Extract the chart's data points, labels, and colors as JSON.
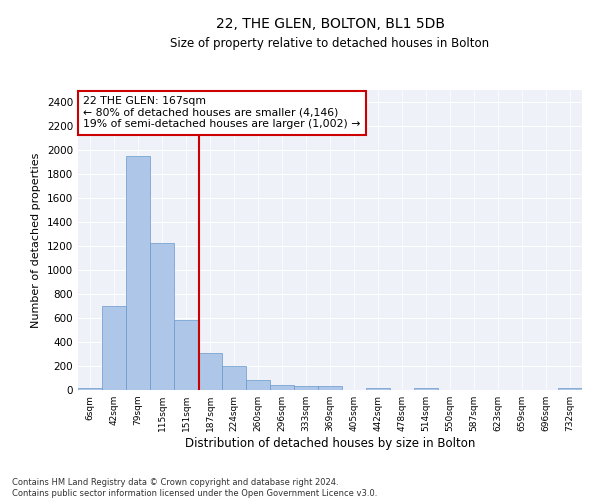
{
  "title": "22, THE GLEN, BOLTON, BL1 5DB",
  "subtitle": "Size of property relative to detached houses in Bolton",
  "xlabel": "Distribution of detached houses by size in Bolton",
  "ylabel": "Number of detached properties",
  "footer_line1": "Contains HM Land Registry data © Crown copyright and database right 2024.",
  "footer_line2": "Contains public sector information licensed under the Open Government Licence v3.0.",
  "annotation_line1": "22 THE GLEN: 167sqm",
  "annotation_line2": "← 80% of detached houses are smaller (4,146)",
  "annotation_line3": "19% of semi-detached houses are larger (1,002) →",
  "tick_labels": [
    "6sqm",
    "42sqm",
    "79sqm",
    "115sqm",
    "151sqm",
    "187sqm",
    "224sqm",
    "260sqm",
    "296sqm",
    "333sqm",
    "369sqm",
    "405sqm",
    "442sqm",
    "478sqm",
    "514sqm",
    "550sqm",
    "587sqm",
    "623sqm",
    "659sqm",
    "696sqm",
    "732sqm"
  ],
  "bar_values": [
    15,
    700,
    1950,
    1225,
    580,
    305,
    200,
    80,
    45,
    35,
    30,
    0,
    20,
    0,
    20,
    0,
    0,
    0,
    0,
    0,
    20
  ],
  "bar_color": "#aec6e8",
  "bar_edge_color": "#6699cc",
  "vline_x_idx": 4.55,
  "vline_color": "#cc0000",
  "ylim": [
    0,
    2500
  ],
  "yticks": [
    0,
    200,
    400,
    600,
    800,
    1000,
    1200,
    1400,
    1600,
    1800,
    2000,
    2200,
    2400
  ],
  "annotation_box_color": "#cc0000",
  "bg_color": "#eef2f8"
}
